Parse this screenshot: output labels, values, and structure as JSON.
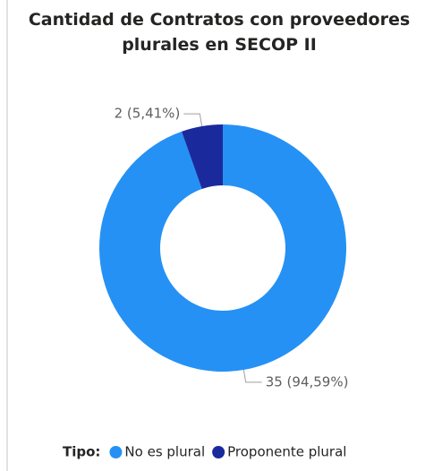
{
  "chart_data": {
    "type": "donut",
    "title": "Cantidad de Contratos con proveedores plurales en SECOP II",
    "legend_title": "Tipo:",
    "categories": [
      "No es plural",
      "Proponente plural"
    ],
    "values": [
      35,
      2
    ],
    "value_labels": [
      "35 (94,59%)",
      "2 (5,41%)"
    ],
    "colors": [
      "#2591f4",
      "#1a2a9c"
    ],
    "legend": "bottom"
  }
}
